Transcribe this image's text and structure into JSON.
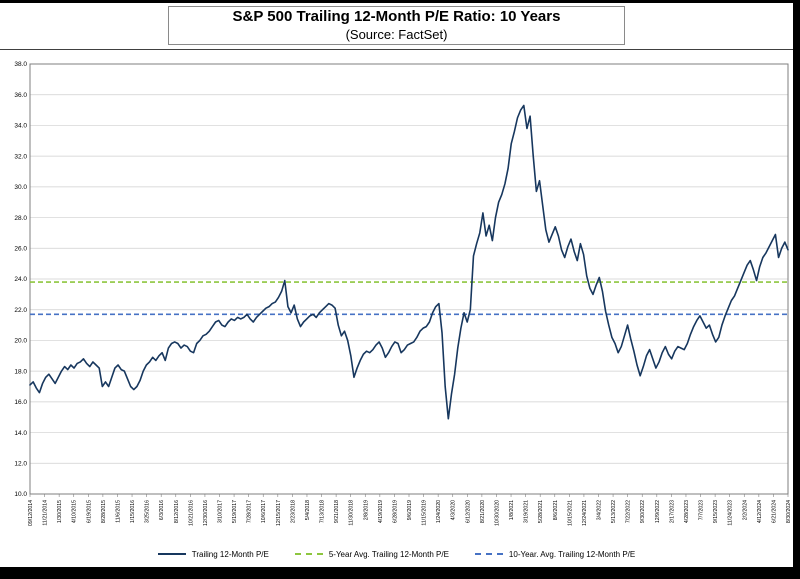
{
  "header": {
    "title": "S&P 500 Trailing 12-Month P/E Ratio: 10 Years",
    "subtitle": "(Source: FactSet)"
  },
  "chart_data": {
    "type": "line",
    "title": "S&P 500 Trailing 12-Month P/E Ratio: 10 Years",
    "subtitle": "(Source: FactSet)",
    "ylabel": "",
    "xlabel": "",
    "ylim": [
      10.0,
      38.0
    ],
    "ytick_step": 2.0,
    "ytick_labels": [
      "38.0",
      "36.0",
      "34.0",
      "32.0",
      "30.0",
      "28.0",
      "26.0",
      "24.0",
      "22.0",
      "20.0",
      "18.0",
      "16.0",
      "14.0",
      "12.0",
      "10.0"
    ],
    "grid": true,
    "legend_position": "bottom",
    "x_tick_labels": [
      "09/12/2014",
      "11/21/2014",
      "1/30/2015",
      "4/10/2015",
      "6/19/2015",
      "8/28/2015",
      "11/6/2015",
      "1/15/2016",
      "3/25/2016",
      "6/3/2016",
      "8/12/2016",
      "10/21/2016",
      "12/30/2016",
      "3/10/2017",
      "5/19/2017",
      "7/28/2017",
      "10/6/2017",
      "12/15/2017",
      "2/23/2018",
      "5/4/2018",
      "7/13/2018",
      "9/21/2018",
      "11/30/2018",
      "2/8/2019",
      "4/19/2019",
      "6/28/2019",
      "9/6/2019",
      "11/15/2019",
      "1/24/2020",
      "4/3/2020",
      "6/12/2020",
      "8/21/2020",
      "10/30/2020",
      "1/8/2021",
      "3/19/2021",
      "5/28/2021",
      "8/6/2021",
      "10/15/2021",
      "12/24/2021",
      "3/4/2022",
      "5/13/2022",
      "7/22/2022",
      "9/30/2022",
      "12/9/2022",
      "2/17/2023",
      "4/28/2023",
      "7/7/2023",
      "9/15/2023",
      "11/24/2023",
      "2/2/2024",
      "4/12/2024",
      "6/21/2024",
      "8/30/2024"
    ],
    "series": [
      {
        "name": "Trailing 12-Month P/E",
        "color": "#17375e",
        "style": "solid",
        "values": [
          17.1,
          17.3,
          16.9,
          16.6,
          17.2,
          17.6,
          17.8,
          17.5,
          17.2,
          17.6,
          18.0,
          18.3,
          18.1,
          18.4,
          18.2,
          18.5,
          18.6,
          18.8,
          18.5,
          18.3,
          18.6,
          18.4,
          18.2,
          17.0,
          17.3,
          17.0,
          17.6,
          18.2,
          18.4,
          18.1,
          18.0,
          17.5,
          17.0,
          16.8,
          17.0,
          17.4,
          18.0,
          18.4,
          18.6,
          18.9,
          18.7,
          19.0,
          19.2,
          18.7,
          19.5,
          19.8,
          19.9,
          19.8,
          19.5,
          19.7,
          19.6,
          19.3,
          19.2,
          19.8,
          20.0,
          20.3,
          20.4,
          20.6,
          20.9,
          21.2,
          21.3,
          21.0,
          20.9,
          21.2,
          21.4,
          21.3,
          21.5,
          21.4,
          21.5,
          21.7,
          21.4,
          21.2,
          21.5,
          21.7,
          21.9,
          22.1,
          22.2,
          22.4,
          22.5,
          22.8,
          23.2,
          23.9,
          22.2,
          21.8,
          22.3,
          21.4,
          20.9,
          21.2,
          21.4,
          21.6,
          21.7,
          21.5,
          21.8,
          22.0,
          22.2,
          22.4,
          22.3,
          22.1,
          21.0,
          20.3,
          20.6,
          20.0,
          19.0,
          17.6,
          18.2,
          18.7,
          19.1,
          19.3,
          19.2,
          19.4,
          19.7,
          19.9,
          19.5,
          18.9,
          19.2,
          19.6,
          19.9,
          19.8,
          19.2,
          19.4,
          19.7,
          19.8,
          19.9,
          20.2,
          20.6,
          20.8,
          20.9,
          21.2,
          21.8,
          22.2,
          22.4,
          20.5,
          17.0,
          14.9,
          16.5,
          17.8,
          19.5,
          20.8,
          21.8,
          21.2,
          22.0,
          25.5,
          26.3,
          27.0,
          28.3,
          26.8,
          27.5,
          26.5,
          28.0,
          29.0,
          29.5,
          30.2,
          31.2,
          32.8,
          33.6,
          34.5,
          35.0,
          35.3,
          33.8,
          34.6,
          32.0,
          29.7,
          30.4,
          28.8,
          27.2,
          26.4,
          26.9,
          27.4,
          26.8,
          25.9,
          25.4,
          26.1,
          26.6,
          25.8,
          25.2,
          26.3,
          25.6,
          24.2,
          23.4,
          23.0,
          23.6,
          24.1,
          23.2,
          21.9,
          21.0,
          20.2,
          19.8,
          19.2,
          19.6,
          20.3,
          21.0,
          20.1,
          19.3,
          18.4,
          17.7,
          18.3,
          19.0,
          19.4,
          18.8,
          18.2,
          18.6,
          19.2,
          19.6,
          19.1,
          18.8,
          19.3,
          19.6,
          19.5,
          19.4,
          19.8,
          20.4,
          20.9,
          21.3,
          21.6,
          21.2,
          20.8,
          21.0,
          20.4,
          19.9,
          20.2,
          21.0,
          21.6,
          22.1,
          22.6,
          22.9,
          23.4,
          23.9,
          24.4,
          24.9,
          25.2,
          24.6,
          23.9,
          24.8,
          25.4,
          25.7,
          26.1,
          26.5,
          26.9,
          25.4,
          26.0,
          26.4,
          25.9
        ]
      },
      {
        "name": "5-Year Avg. Trailing 12-Month P/E",
        "color": "#8dc63f",
        "style": "dashed",
        "value": 23.8
      },
      {
        "name": "10-Year. Avg. Trailing 12-Month P/E",
        "color": "#4672c4",
        "style": "dashed",
        "value": 21.7
      }
    ]
  }
}
